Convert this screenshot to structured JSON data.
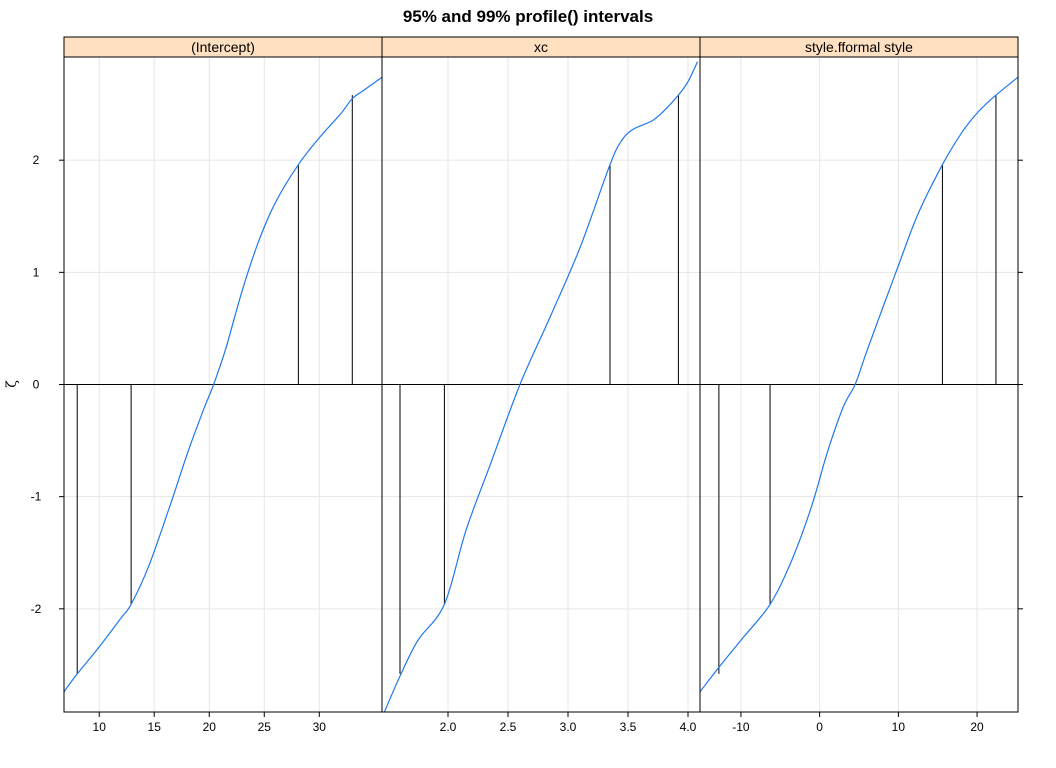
{
  "chart_data": {
    "type": "line",
    "title": "95% and 99% profile() intervals",
    "ylabel": "ζ",
    "ylim": [
      -2.92,
      2.92
    ],
    "yticks": [
      -2,
      -1,
      0,
      1,
      2
    ],
    "grid": true,
    "colors": {
      "curve": "#1f78f0",
      "strip": "#ffe0c0",
      "grid": "#e6e6e6",
      "line": "#000000"
    },
    "panels": [
      {
        "name": "(Intercept)",
        "xlim": [
          6.8,
          35.7
        ],
        "xticks": [
          10,
          15,
          20,
          25,
          30
        ],
        "xticklabels": [
          "10",
          "15",
          "20",
          "25",
          "30"
        ],
        "curve": [
          {
            "x": 6.8,
            "y": -2.74
          },
          {
            "x": 8.0,
            "y": -2.58
          },
          {
            "x": 10.0,
            "y": -2.34
          },
          {
            "x": 12.0,
            "y": -2.08
          },
          {
            "x": 12.9,
            "y": -1.96
          },
          {
            "x": 14.5,
            "y": -1.62
          },
          {
            "x": 16.3,
            "y": -1.12
          },
          {
            "x": 18.0,
            "y": -0.62
          },
          {
            "x": 19.5,
            "y": -0.22
          },
          {
            "x": 20.4,
            "y": 0.0
          },
          {
            "x": 21.5,
            "y": 0.32
          },
          {
            "x": 23.0,
            "y": 0.84
          },
          {
            "x": 24.5,
            "y": 1.28
          },
          {
            "x": 26.0,
            "y": 1.62
          },
          {
            "x": 28.1,
            "y": 1.96
          },
          {
            "x": 30.0,
            "y": 2.2
          },
          {
            "x": 32.0,
            "y": 2.42
          },
          {
            "x": 33.0,
            "y": 2.55
          },
          {
            "x": 34.0,
            "y": 2.62
          },
          {
            "x": 35.7,
            "y": 2.74
          }
        ],
        "intervals": [
          {
            "x": 8.0,
            "y": -2.58
          },
          {
            "x": 12.9,
            "y": -1.96
          },
          {
            "x": 28.1,
            "y": 1.96
          },
          {
            "x": 33.0,
            "y": 2.58
          }
        ]
      },
      {
        "name": "xc",
        "xlim": [
          1.45,
          4.1
        ],
        "xticks": [
          2.0,
          2.5,
          3.0,
          3.5,
          4.0
        ],
        "xticklabels": [
          "2.0",
          "2.5",
          "3.0",
          "3.5",
          "4.0"
        ],
        "curve": [
          {
            "x": 1.47,
            "y": -2.92
          },
          {
            "x": 1.6,
            "y": -2.6
          },
          {
            "x": 1.75,
            "y": -2.28
          },
          {
            "x": 1.97,
            "y": -1.96
          },
          {
            "x": 2.15,
            "y": -1.3
          },
          {
            "x": 2.35,
            "y": -0.72
          },
          {
            "x": 2.6,
            "y": 0.0
          },
          {
            "x": 2.85,
            "y": 0.6
          },
          {
            "x": 3.1,
            "y": 1.22
          },
          {
            "x": 3.35,
            "y": 1.96
          },
          {
            "x": 3.45,
            "y": 2.18
          },
          {
            "x": 3.55,
            "y": 2.28
          },
          {
            "x": 3.7,
            "y": 2.35
          },
          {
            "x": 3.8,
            "y": 2.44
          },
          {
            "x": 3.92,
            "y": 2.58
          },
          {
            "x": 4.0,
            "y": 2.7
          },
          {
            "x": 4.08,
            "y": 2.88
          }
        ],
        "intervals": [
          {
            "x": 1.6,
            "y": -2.58
          },
          {
            "x": 1.97,
            "y": -1.96
          },
          {
            "x": 3.35,
            "y": 1.96
          },
          {
            "x": 3.92,
            "y": 2.58
          }
        ]
      },
      {
        "name": "style.fformal style",
        "xlim": [
          -15.2,
          25.2
        ],
        "xticks": [
          -10,
          0,
          10,
          20
        ],
        "xticklabels": [
          "-10",
          "0",
          "10",
          "20"
        ],
        "curve": [
          {
            "x": -15.2,
            "y": -2.74
          },
          {
            "x": -13.0,
            "y": -2.54
          },
          {
            "x": -10.0,
            "y": -2.28
          },
          {
            "x": -6.3,
            "y": -1.96
          },
          {
            "x": -3.5,
            "y": -1.56
          },
          {
            "x": -1.0,
            "y": -1.08
          },
          {
            "x": 1.0,
            "y": -0.6
          },
          {
            "x": 3.0,
            "y": -0.2
          },
          {
            "x": 4.5,
            "y": 0.0
          },
          {
            "x": 6.0,
            "y": 0.3
          },
          {
            "x": 8.0,
            "y": 0.68
          },
          {
            "x": 10.0,
            "y": 1.06
          },
          {
            "x": 12.5,
            "y": 1.52
          },
          {
            "x": 15.6,
            "y": 1.96
          },
          {
            "x": 18.0,
            "y": 2.24
          },
          {
            "x": 20.0,
            "y": 2.42
          },
          {
            "x": 22.4,
            "y": 2.58
          },
          {
            "x": 25.2,
            "y": 2.74
          }
        ],
        "intervals": [
          {
            "x": -12.8,
            "y": -2.58
          },
          {
            "x": -6.3,
            "y": -1.96
          },
          {
            "x": 15.6,
            "y": 1.96
          },
          {
            "x": 22.4,
            "y": 2.58
          }
        ]
      }
    ]
  }
}
